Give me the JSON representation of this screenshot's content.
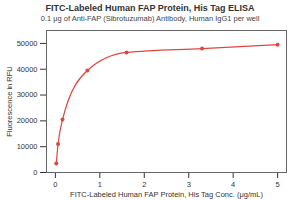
{
  "chart_data": {
    "type": "line",
    "title": "FITC-Labeled Human FAP Protein, His Tag ELISA",
    "subtitle": "0.1 μg of Anti-FAP (Sibrotuzumab) Antibody, Human IgG1 per well",
    "x_label": "FITC-Labeled Human FAP Protein, His Tag Conc. (μg/mL)",
    "y_label": "Fluorescence in RFU",
    "x": [
      0.02,
      0.06,
      0.16,
      0.72,
      1.6,
      3.3,
      5.0
    ],
    "values": [
      3500,
      11000,
      20500,
      39500,
      46500,
      48000,
      49500
    ],
    "color": "#e0463e",
    "marker": "circle",
    "line_style": "solid",
    "xlim": [
      -0.2,
      5.2
    ],
    "xticks": [
      0,
      1,
      2,
      3,
      4,
      5
    ],
    "ylim": [
      0,
      55000
    ],
    "yticks": [
      0,
      10000,
      20000,
      30000,
      40000,
      50000
    ],
    "grid": false
  }
}
